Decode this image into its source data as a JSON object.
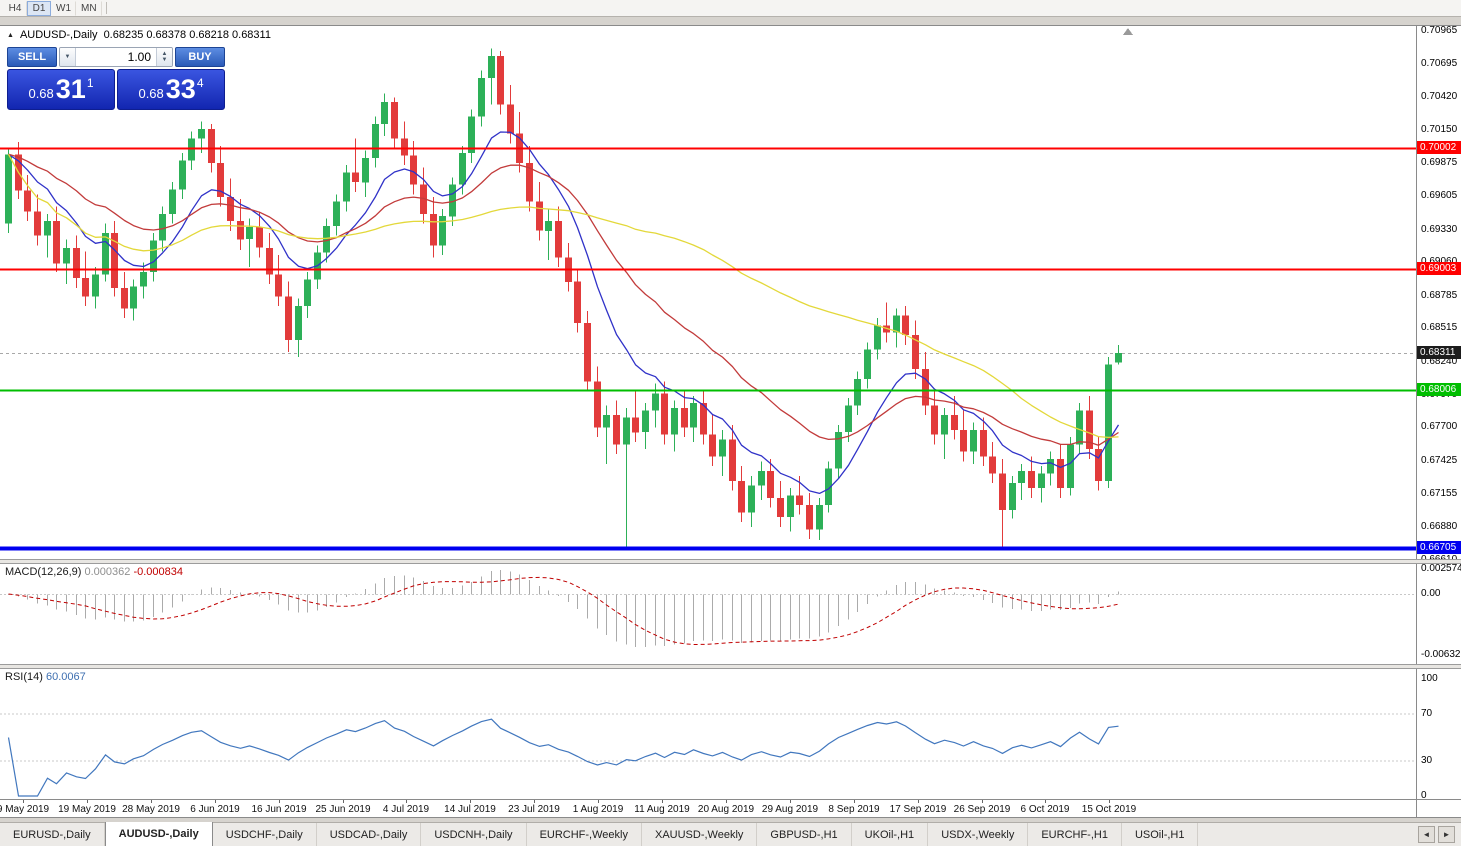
{
  "toolbar": {
    "periods": [
      {
        "label": "H4",
        "active": false
      },
      {
        "label": "D1",
        "active": true
      },
      {
        "label": "W1",
        "active": false
      },
      {
        "label": "MN",
        "active": false
      }
    ]
  },
  "chart": {
    "title_symbol": "AUDUSD-,Daily",
    "ohlc_text": "0.68235 0.68378 0.68218 0.68311"
  },
  "trade_panel": {
    "sell_label": "SELL",
    "buy_label": "BUY",
    "volume": "1.00",
    "bid": {
      "main": "0.68",
      "pips": "31",
      "frac": "1"
    },
    "ask": {
      "main": "0.68",
      "pips": "33",
      "frac": "4"
    }
  },
  "icons": {
    "collapse_triangle": "▲",
    "volume_down": "▼",
    "spin_up": "▲",
    "spin_down": "▼",
    "tab_scroll_left": "◄",
    "tab_scroll_right": "►"
  },
  "macd_panel": {
    "label": "MACD(12,26,9)",
    "value_main": "0.000362",
    "value_signal": "-0.000834",
    "scale": [
      "0.002574",
      "0.00",
      "-0.006326"
    ],
    "hist_color": "#ABABAB",
    "signal_color": "#C00000",
    "params": {
      "fast": 12,
      "slow": 26,
      "signal": 9
    }
  },
  "rsi_panel": {
    "label": "RSI(14)",
    "value": "60.0067",
    "scale": [
      "100",
      "70",
      "30",
      "0"
    ],
    "line_color": "#4177BE",
    "level_lines": [
      70,
      30
    ],
    "period": 14
  },
  "tabs": {
    "items": [
      {
        "label": "EURUSD-,Daily",
        "active": false
      },
      {
        "label": "AUDUSD-,Daily",
        "active": true
      },
      {
        "label": "USDCHF-,Daily",
        "active": false
      },
      {
        "label": "USDCAD-,Daily",
        "active": false
      },
      {
        "label": "USDCNH-,Daily",
        "active": false
      },
      {
        "label": "EURCHF-,Weekly",
        "active": false
      },
      {
        "label": "XAUUSD-,Weekly",
        "active": false
      },
      {
        "label": "GBPUSD-,H1",
        "active": false
      },
      {
        "label": "UKOil-,H1",
        "active": false
      },
      {
        "label": "USDX-,Weekly",
        "active": false
      },
      {
        "label": "EURCHF-,H1",
        "active": false
      },
      {
        "label": "USOil-,H1",
        "active": false
      }
    ]
  },
  "chart_data": {
    "type": "candlestick",
    "symbol": "AUDUSD",
    "timeframe": "Daily",
    "current_ohlc": {
      "open": 0.68235,
      "high": 0.68378,
      "low": 0.68218,
      "close": 0.68311
    },
    "price_range": {
      "max": 0.7101,
      "min": 0.6662
    },
    "y_ticks": [
      "0.70965",
      "0.70695",
      "0.70420",
      "0.70150",
      "0.69875",
      "0.69605",
      "0.69330",
      "0.69060",
      "0.68785",
      "0.68515",
      "0.68240",
      "0.67970",
      "0.67700",
      "0.67425",
      "0.67155",
      "0.66880",
      "0.66610"
    ],
    "x_ticks": [
      "9 May 2019",
      "19 May 2019",
      "28 May 2019",
      "6 Jun 2019",
      "16 Jun 2019",
      "25 Jun 2019",
      "4 Jul 2019",
      "14 Jul 2019",
      "23 Jul 2019",
      "1 Aug 2019",
      "11 Aug 2019",
      "20 Aug 2019",
      "29 Aug 2019",
      "8 Sep 2019",
      "17 Sep 2019",
      "26 Sep 2019",
      "6 Oct 2019",
      "15 Oct 2019"
    ],
    "levels": [
      {
        "price": 0.70002,
        "label": "0.70002",
        "color": "#FF0000",
        "width": 2,
        "style": "solid"
      },
      {
        "price": 0.69003,
        "label": "0.69003",
        "color": "#FF0000",
        "width": 2,
        "style": "solid"
      },
      {
        "price": 0.68311,
        "label": "0.68311",
        "color": "#1C1C1C",
        "line_color": "#A8A8A8",
        "width": 1,
        "style": "dashed",
        "role": "last-price"
      },
      {
        "price": 0.68006,
        "label": "0.68006",
        "color": "#00BE00",
        "width": 2,
        "style": "solid"
      },
      {
        "price": 0.66705,
        "label": "0.66705",
        "color": "#0000F0",
        "width": 4,
        "style": "solid"
      }
    ],
    "moving_averages": [
      {
        "period": 10,
        "type": "ema",
        "color": "#3032C8"
      },
      {
        "period": 25,
        "type": "ema",
        "color": "#C23B3B"
      },
      {
        "period": 55,
        "type": "sma",
        "color": "#E3D83A"
      }
    ],
    "colors": {
      "up": "#2DB058",
      "down": "#E23B3B",
      "background": "#FFFFFF"
    },
    "ohlc": [
      [
        0.6938,
        0.7,
        0.693,
        0.6995
      ],
      [
        0.6995,
        0.7005,
        0.6958,
        0.6965
      ],
      [
        0.6965,
        0.6978,
        0.694,
        0.6948
      ],
      [
        0.6948,
        0.6962,
        0.692,
        0.6928
      ],
      [
        0.6928,
        0.6946,
        0.691,
        0.694
      ],
      [
        0.694,
        0.6952,
        0.6898,
        0.6905
      ],
      [
        0.6905,
        0.6925,
        0.6888,
        0.6918
      ],
      [
        0.6918,
        0.6928,
        0.6885,
        0.6893
      ],
      [
        0.6893,
        0.6915,
        0.687,
        0.6878
      ],
      [
        0.6878,
        0.6902,
        0.6868,
        0.6896
      ],
      [
        0.6896,
        0.6938,
        0.689,
        0.693
      ],
      [
        0.693,
        0.694,
        0.6878,
        0.6885
      ],
      [
        0.6885,
        0.6898,
        0.686,
        0.6868
      ],
      [
        0.6868,
        0.6892,
        0.6858,
        0.6886
      ],
      [
        0.6886,
        0.6906,
        0.6876,
        0.6898
      ],
      [
        0.6898,
        0.693,
        0.689,
        0.6924
      ],
      [
        0.6924,
        0.6952,
        0.6915,
        0.6946
      ],
      [
        0.6946,
        0.6972,
        0.6938,
        0.6966
      ],
      [
        0.6966,
        0.6996,
        0.6958,
        0.699
      ],
      [
        0.699,
        0.7014,
        0.6982,
        0.7008
      ],
      [
        0.7008,
        0.7022,
        0.6996,
        0.7016
      ],
      [
        0.7016,
        0.702,
        0.698,
        0.6988
      ],
      [
        0.6988,
        0.7002,
        0.6952,
        0.696
      ],
      [
        0.696,
        0.6975,
        0.6932,
        0.694
      ],
      [
        0.694,
        0.6958,
        0.6916,
        0.6925
      ],
      [
        0.6925,
        0.6942,
        0.6902,
        0.6935
      ],
      [
        0.6935,
        0.6948,
        0.691,
        0.6918
      ],
      [
        0.6918,
        0.693,
        0.6888,
        0.6896
      ],
      [
        0.6896,
        0.6912,
        0.687,
        0.6878
      ],
      [
        0.6878,
        0.689,
        0.6832,
        0.6842
      ],
      [
        0.6842,
        0.6876,
        0.6828,
        0.687
      ],
      [
        0.687,
        0.6898,
        0.686,
        0.6892
      ],
      [
        0.6892,
        0.692,
        0.6884,
        0.6914
      ],
      [
        0.6914,
        0.6942,
        0.6906,
        0.6936
      ],
      [
        0.6936,
        0.6962,
        0.6928,
        0.6956
      ],
      [
        0.6956,
        0.6986,
        0.6948,
        0.698
      ],
      [
        0.698,
        0.7008,
        0.6964,
        0.6972
      ],
      [
        0.6972,
        0.6998,
        0.696,
        0.6992
      ],
      [
        0.6992,
        0.7026,
        0.6984,
        0.702
      ],
      [
        0.702,
        0.7045,
        0.701,
        0.7038
      ],
      [
        0.7038,
        0.7042,
        0.7,
        0.7008
      ],
      [
        0.7008,
        0.7022,
        0.6986,
        0.6994
      ],
      [
        0.6994,
        0.7006,
        0.6962,
        0.697
      ],
      [
        0.697,
        0.6984,
        0.6938,
        0.6946
      ],
      [
        0.6946,
        0.696,
        0.691,
        0.692
      ],
      [
        0.692,
        0.695,
        0.6912,
        0.6944
      ],
      [
        0.6944,
        0.6976,
        0.6936,
        0.697
      ],
      [
        0.697,
        0.7002,
        0.6962,
        0.6996
      ],
      [
        0.6996,
        0.7032,
        0.6988,
        0.7026
      ],
      [
        0.7026,
        0.7064,
        0.7018,
        0.7058
      ],
      [
        0.7058,
        0.7082,
        0.7036,
        0.7076
      ],
      [
        0.7076,
        0.708,
        0.7028,
        0.7036
      ],
      [
        0.7036,
        0.7052,
        0.7004,
        0.7012
      ],
      [
        0.7012,
        0.703,
        0.698,
        0.6988
      ],
      [
        0.6988,
        0.7002,
        0.6948,
        0.6956
      ],
      [
        0.6956,
        0.6972,
        0.6924,
        0.6932
      ],
      [
        0.6932,
        0.695,
        0.6908,
        0.694
      ],
      [
        0.694,
        0.6952,
        0.6902,
        0.691
      ],
      [
        0.691,
        0.6922,
        0.6882,
        0.689
      ],
      [
        0.689,
        0.69,
        0.6848,
        0.6856
      ],
      [
        0.6856,
        0.6866,
        0.68,
        0.6808
      ],
      [
        0.6808,
        0.682,
        0.6762,
        0.677
      ],
      [
        0.677,
        0.6788,
        0.674,
        0.678
      ],
      [
        0.678,
        0.6792,
        0.6748,
        0.6756
      ],
      [
        0.6756,
        0.6786,
        0.6672,
        0.6778
      ],
      [
        0.6778,
        0.68,
        0.6758,
        0.6766
      ],
      [
        0.6766,
        0.679,
        0.6752,
        0.6784
      ],
      [
        0.6784,
        0.6806,
        0.677,
        0.6798
      ],
      [
        0.6798,
        0.6808,
        0.6756,
        0.6764
      ],
      [
        0.6764,
        0.6792,
        0.675,
        0.6786
      ],
      [
        0.6786,
        0.68,
        0.6762,
        0.677
      ],
      [
        0.677,
        0.6796,
        0.6758,
        0.679
      ],
      [
        0.679,
        0.68,
        0.6756,
        0.6764
      ],
      [
        0.6764,
        0.678,
        0.6738,
        0.6746
      ],
      [
        0.6746,
        0.6768,
        0.673,
        0.676
      ],
      [
        0.676,
        0.6772,
        0.6718,
        0.6726
      ],
      [
        0.6726,
        0.6738,
        0.6692,
        0.67
      ],
      [
        0.67,
        0.673,
        0.6688,
        0.6722
      ],
      [
        0.6722,
        0.6742,
        0.671,
        0.6734
      ],
      [
        0.6734,
        0.6744,
        0.6704,
        0.6712
      ],
      [
        0.6712,
        0.6726,
        0.6688,
        0.6696
      ],
      [
        0.6696,
        0.672,
        0.6684,
        0.6714
      ],
      [
        0.6714,
        0.673,
        0.6698,
        0.6706
      ],
      [
        0.6706,
        0.6716,
        0.6678,
        0.6686
      ],
      [
        0.6686,
        0.6712,
        0.6677,
        0.6706
      ],
      [
        0.6706,
        0.6742,
        0.67,
        0.6736
      ],
      [
        0.6736,
        0.6772,
        0.6728,
        0.6766
      ],
      [
        0.6766,
        0.6794,
        0.6758,
        0.6788
      ],
      [
        0.6788,
        0.6816,
        0.678,
        0.681
      ],
      [
        0.681,
        0.684,
        0.6802,
        0.6834
      ],
      [
        0.6834,
        0.686,
        0.6826,
        0.6854
      ],
      [
        0.6854,
        0.6873,
        0.684,
        0.6848
      ],
      [
        0.6848,
        0.6868,
        0.6836,
        0.6862
      ],
      [
        0.6862,
        0.687,
        0.6838,
        0.6846
      ],
      [
        0.6846,
        0.6858,
        0.681,
        0.6818
      ],
      [
        0.6818,
        0.6832,
        0.678,
        0.6788
      ],
      [
        0.6788,
        0.6802,
        0.6756,
        0.6764
      ],
      [
        0.6764,
        0.6786,
        0.6744,
        0.678
      ],
      [
        0.678,
        0.6796,
        0.676,
        0.6768
      ],
      [
        0.6768,
        0.6784,
        0.6742,
        0.675
      ],
      [
        0.675,
        0.6774,
        0.674,
        0.6768
      ],
      [
        0.6768,
        0.6778,
        0.6738,
        0.6746
      ],
      [
        0.6746,
        0.6758,
        0.6724,
        0.6732
      ],
      [
        0.6732,
        0.6744,
        0.6671,
        0.6702
      ],
      [
        0.6702,
        0.673,
        0.6695,
        0.6724
      ],
      [
        0.6724,
        0.674,
        0.671,
        0.6734
      ],
      [
        0.6734,
        0.6746,
        0.6712,
        0.672
      ],
      [
        0.672,
        0.6738,
        0.6708,
        0.6732
      ],
      [
        0.6732,
        0.675,
        0.6722,
        0.6744
      ],
      [
        0.6744,
        0.6756,
        0.6712,
        0.672
      ],
      [
        0.672,
        0.6762,
        0.6714,
        0.6756
      ],
      [
        0.6756,
        0.679,
        0.6748,
        0.6784
      ],
      [
        0.6784,
        0.6796,
        0.6744,
        0.6752
      ],
      [
        0.6752,
        0.6762,
        0.6718,
        0.6726
      ],
      [
        0.6726,
        0.6828,
        0.672,
        0.6822
      ],
      [
        0.68235,
        0.68378,
        0.68218,
        0.68311
      ]
    ]
  }
}
